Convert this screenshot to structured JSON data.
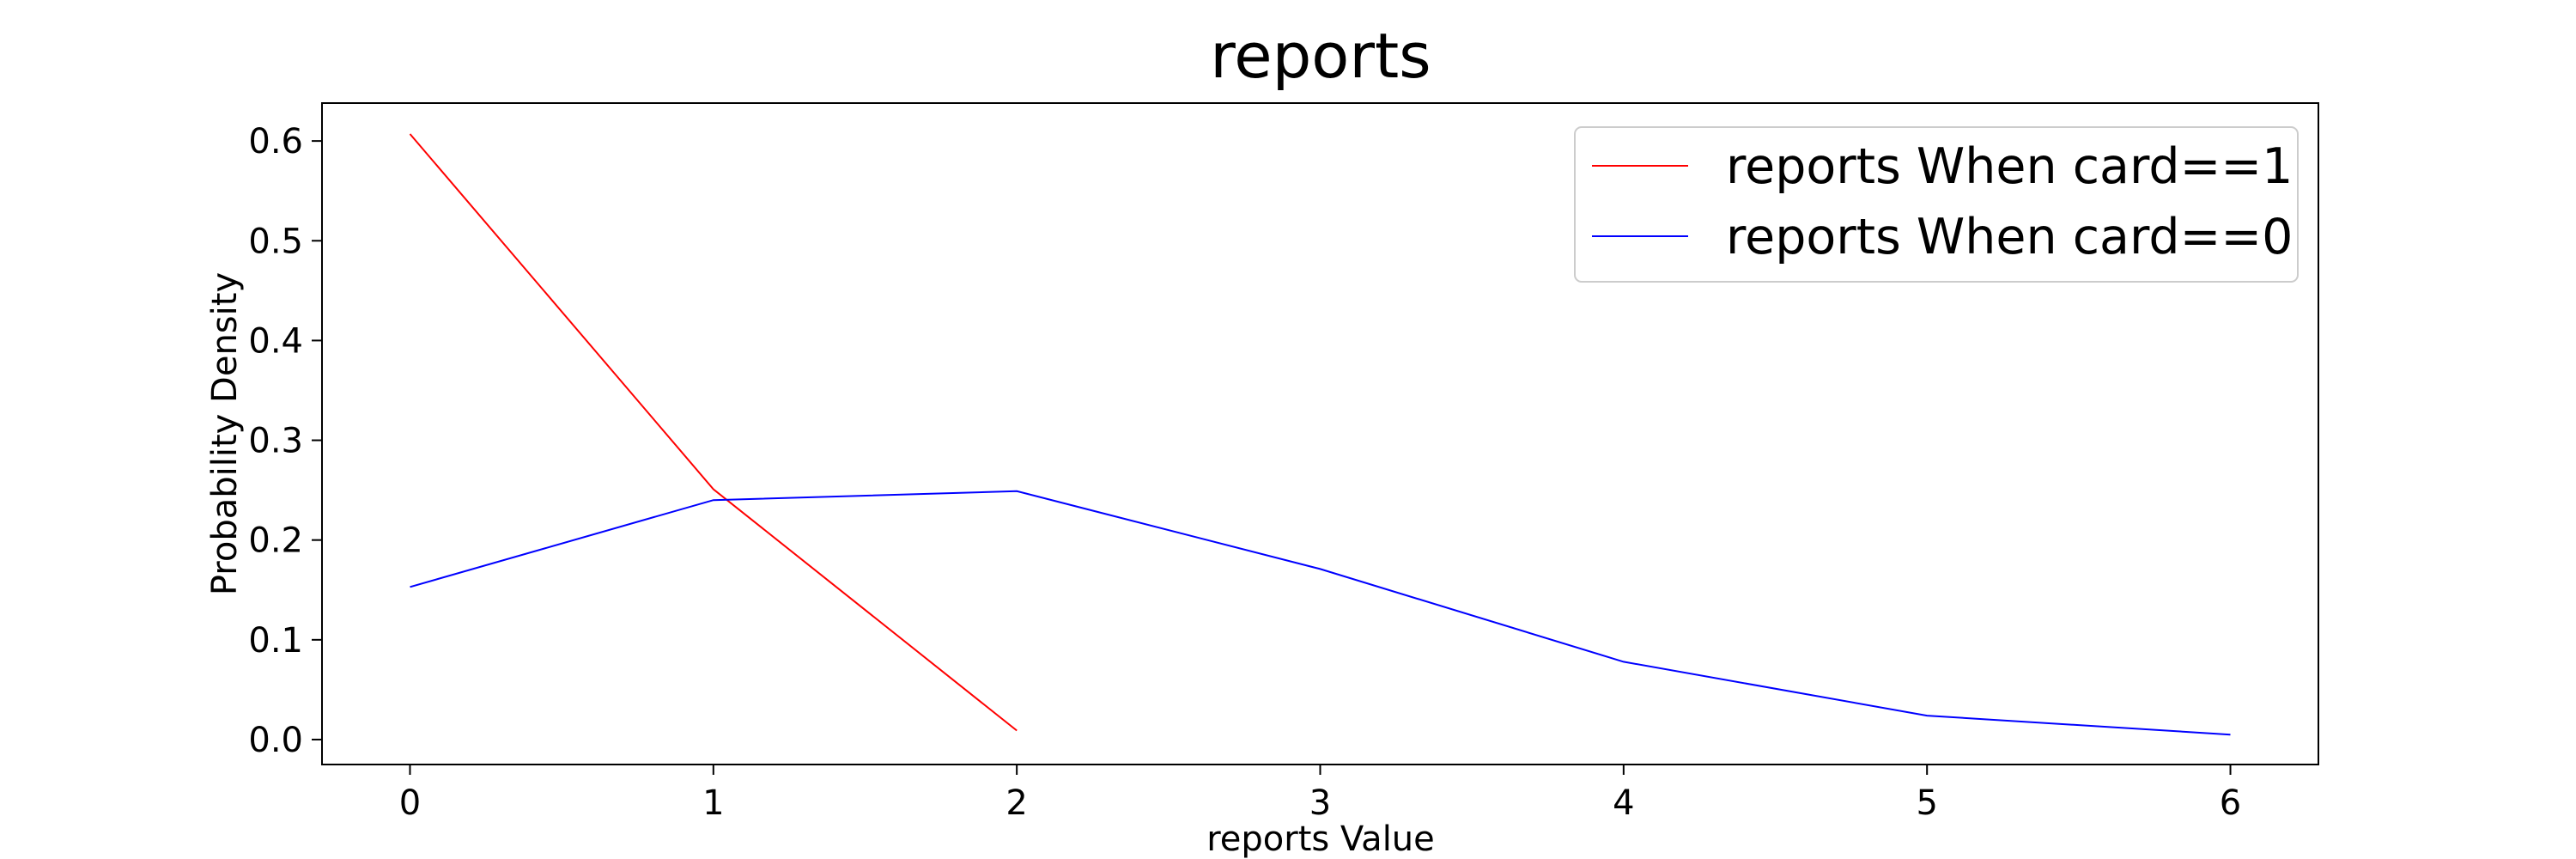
{
  "chart_data": {
    "type": "line",
    "title": "reports",
    "xlabel": "reports Value",
    "ylabel": "Probability Density",
    "xlim": [
      -0.29,
      6.29
    ],
    "ylim": [
      -0.025,
      0.638
    ],
    "xticks": [
      0,
      1,
      2,
      3,
      4,
      5,
      6
    ],
    "yticks": [
      0.0,
      0.1,
      0.2,
      0.3,
      0.4,
      0.5,
      0.6
    ],
    "xtick_labels": [
      "0",
      "1",
      "2",
      "3",
      "4",
      "5",
      "6"
    ],
    "ytick_labels": [
      "0.0",
      "0.1",
      "0.2",
      "0.3",
      "0.4",
      "0.5",
      "0.6"
    ],
    "grid": false,
    "legend_position": "top-right",
    "series": [
      {
        "name": "reports When card==1",
        "color": "#ff0000",
        "x": [
          0,
          1,
          2
        ],
        "y": [
          0.607,
          0.251,
          0.009
        ]
      },
      {
        "name": "reports When card==0",
        "color": "#0000ff",
        "x": [
          0,
          1,
          2,
          3,
          4,
          5,
          6
        ],
        "y": [
          0.153,
          0.24,
          0.249,
          0.171,
          0.078,
          0.024,
          0.005
        ]
      }
    ]
  }
}
